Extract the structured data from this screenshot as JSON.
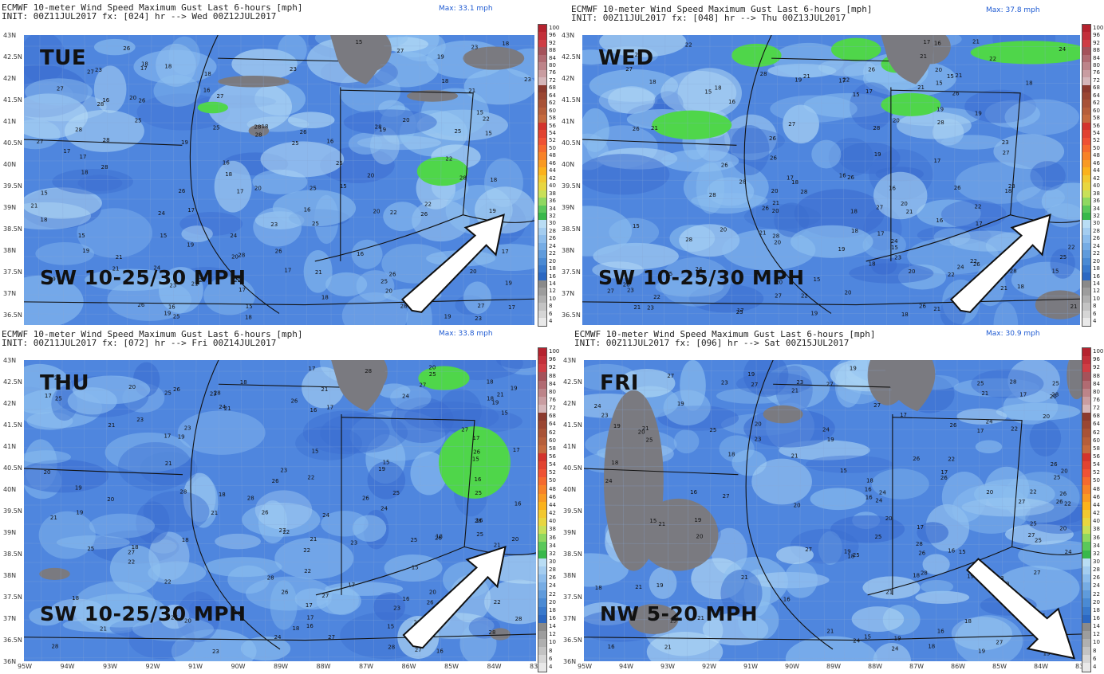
{
  "panels": [
    {
      "title": "ECMWF 10-meter Wind Speed Maximum Gust Last 6-hours [mph]",
      "init": "INIT: 00Z11JUL2017 fx: [024] hr --> Wed 00Z12JUL2017",
      "max": "Max: 33.1 mph",
      "day": "TUE",
      "wind": "SW 10-25/30 MPH",
      "arrow": "northeast",
      "lat_labels": [
        "43N",
        "42.5N",
        "42N",
        "41.5N",
        "41N",
        "40.5N",
        "40N",
        "39.5N",
        "39N",
        "38.5N",
        "38N",
        "37.5N",
        "37N",
        "36.5N"
      ],
      "lon_labels": []
    },
    {
      "title": "ECMWF 10-meter Wind Speed Maximum Gust Last 6-hours [mph]",
      "init": "INIT: 00Z11JUL2017 fx: [048] hr --> Thu 00Z13JUL2017",
      "max": "Max: 37.8 mph",
      "day": "WED",
      "wind": "SW 10-25/30 MPH",
      "arrow": "northeast",
      "lat_labels": [
        "43N",
        "42.5N",
        "42N",
        "41.5N",
        "41N",
        "40.5N",
        "40N",
        "39.5N",
        "39N",
        "38.5N",
        "38N",
        "37.5N",
        "37N",
        "36.5N"
      ],
      "lon_labels": []
    },
    {
      "title": "ECMWF 10-meter Wind Speed Maximum Gust Last 6-hours [mph]",
      "init": "INIT: 00Z11JUL2017 fx: [072] hr --> Fri 00Z14JUL2017",
      "max": "Max: 33.8 mph",
      "day": "THU",
      "wind": "SW 10-25/30 MPH",
      "arrow": "northeast",
      "lat_labels": [
        "43N",
        "42.5N",
        "42N",
        "41.5N",
        "41N",
        "40.5N",
        "40N",
        "39.5N",
        "39N",
        "38.5N",
        "38N",
        "37.5N",
        "37N",
        "36.5N",
        "36N"
      ],
      "lon_labels": [
        "95W",
        "94W",
        "93W",
        "92W",
        "91W",
        "90W",
        "89W",
        "88W",
        "87W",
        "86W",
        "85W",
        "84W",
        "83W"
      ]
    },
    {
      "title": "ECMWF 10-meter Wind Speed Maximum Gust Last 6-hours [mph]",
      "init": "INIT: 00Z11JUL2017 fx: [096] hr --> Sat 00Z15JUL2017",
      "max": "Max: 30.9 mph",
      "day": "FRI",
      "wind": "NW 5-20 MPH",
      "arrow": "southeast",
      "lat_labels": [
        "43N",
        "42.5N",
        "42N",
        "41.5N",
        "41N",
        "40.5N",
        "40N",
        "39.5N",
        "39N",
        "38.5N",
        "38N",
        "37.5N",
        "37N",
        "36.5N",
        "36N"
      ],
      "lon_labels": [
        "95W",
        "94W",
        "93W",
        "92W",
        "91W",
        "90W",
        "89W",
        "88W",
        "87W",
        "86W",
        "85W",
        "84W",
        "83"
      ]
    }
  ],
  "colorbar": {
    "labels": [
      "100",
      "96",
      "92",
      "88",
      "84",
      "80",
      "76",
      "72",
      "68",
      "64",
      "62",
      "60",
      "58",
      "56",
      "54",
      "52",
      "50",
      "48",
      "46",
      "44",
      "42",
      "40",
      "38",
      "36",
      "34",
      "32",
      "30",
      "28",
      "26",
      "24",
      "22",
      "20",
      "18",
      "16",
      "14",
      "12",
      "10",
      "8",
      "6",
      "4"
    ],
    "colors": [
      "#b5222e",
      "#c3303a",
      "#cf3d44",
      "#a5525a",
      "#b16b72",
      "#bd8489",
      "#c99da1",
      "#d5b6b9",
      "#8b3a2e",
      "#9a4632",
      "#a85236",
      "#b65e3a",
      "#c56a3e",
      "#d3342c",
      "#e14330",
      "#ef5234",
      "#f56a2e",
      "#f78228",
      "#f99a22",
      "#fbb21c",
      "#f2c830",
      "#e8d640",
      "#c8e058",
      "#8fd860",
      "#5ac85a",
      "#38b84a",
      "#b9ddf4",
      "#a4cdf0",
      "#8dbdec",
      "#76ace4",
      "#5f9bdc",
      "#4a8ad4",
      "#3979cc",
      "#2c68c2",
      "#8a8a8a",
      "#9d9d9d",
      "#b0b0b0",
      "#c3c3c3",
      "#d6d6d6",
      "#e9e9e9"
    ]
  },
  "map_colors": {
    "base": "#4f86de",
    "dark": "#3b6dd0",
    "light": "#8ec0f0",
    "pale": "#b6dcf6",
    "green": "#4fd64a",
    "gray": "#7a7a80"
  }
}
